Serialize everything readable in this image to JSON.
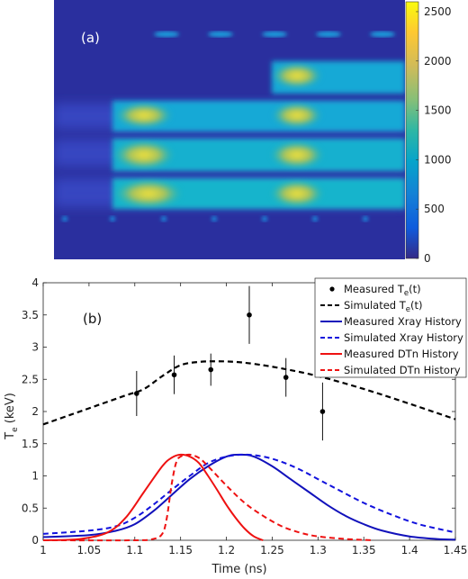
{
  "chart_data": [
    {
      "type": "heatmap",
      "panel_label": "(a)",
      "colorbar": {
        "range": [
          0,
          2600
        ],
        "ticks": [
          0,
          500,
          1000,
          1500,
          2000,
          2500
        ],
        "colormap": "parula",
        "colors": [
          "#352a87",
          "#0f5cdd",
          "#1481d6",
          "#06a4ca",
          "#2eb7a4",
          "#87bf77",
          "#d1bb59",
          "#fec832",
          "#f9fb0e"
        ]
      },
      "features": [
        {
          "name": "fiducial dots top",
          "row": 0.08,
          "x_start": 0.3,
          "x_end": 0.95,
          "count": 5,
          "value": 1400
        },
        {
          "name": "streak band 1",
          "row": 0.22,
          "x_start": 0.62,
          "x_end": 1.0,
          "value": 2000
        },
        {
          "name": "streak band 2",
          "row": 0.42,
          "x_start": 0.18,
          "x_end": 1.0,
          "value": 1700
        },
        {
          "name": "streak band 3",
          "row": 0.58,
          "x_start": 0.18,
          "x_end": 1.0,
          "value": 1900
        },
        {
          "name": "streak band 4",
          "row": 0.74,
          "x_start": 0.18,
          "x_end": 1.0,
          "value": 2100
        },
        {
          "name": "fiducial dots bottom",
          "row": 0.9,
          "x_start": 0.0,
          "x_end": 1.0,
          "count": 9,
          "value": 900
        }
      ]
    },
    {
      "type": "line",
      "panel_label": "(b)",
      "xlabel": "Time (ns)",
      "ylabel": "Te (keV)",
      "ylabel_main": "T",
      "ylabel_sub": "e",
      "ylabel_rest": " (keV)",
      "xlim": [
        1,
        1.45
      ],
      "ylim": [
        0,
        4
      ],
      "xticks": [
        1,
        1.05,
        1.1,
        1.15,
        1.2,
        1.25,
        1.3,
        1.35,
        1.4,
        1.45
      ],
      "yticks": [
        0,
        0.5,
        1,
        1.5,
        2,
        2.5,
        3,
        3.5,
        4
      ],
      "grid": false,
      "legend_position": "top-right",
      "measured_te": {
        "name": "Measured Te(t)",
        "x": [
          1.102,
          1.143,
          1.183,
          1.225,
          1.265,
          1.305
        ],
        "y": [
          2.28,
          2.57,
          2.65,
          3.5,
          2.53,
          2.0
        ],
        "err": [
          0.35,
          0.3,
          0.25,
          0.45,
          0.3,
          0.45
        ],
        "color": "#000000"
      },
      "simulated_te": {
        "name": "Simulated Te(t)",
        "x": [
          1.0,
          1.03,
          1.06,
          1.09,
          1.11,
          1.13,
          1.15,
          1.17,
          1.19,
          1.21,
          1.23,
          1.26,
          1.3,
          1.35,
          1.4,
          1.45
        ],
        "y": [
          1.8,
          1.95,
          2.1,
          2.25,
          2.35,
          2.55,
          2.72,
          2.77,
          2.78,
          2.77,
          2.74,
          2.67,
          2.55,
          2.35,
          2.12,
          1.88
        ],
        "color": "#000000"
      },
      "series": [
        {
          "name": "Measured Xray History",
          "color": "#1111bb",
          "dash": "solid",
          "x": [
            1.0,
            1.05,
            1.08,
            1.1,
            1.12,
            1.14,
            1.16,
            1.18,
            1.2,
            1.215,
            1.23,
            1.25,
            1.27,
            1.29,
            1.31,
            1.33,
            1.35,
            1.37,
            1.4,
            1.43,
            1.45
          ],
          "y": [
            0.05,
            0.08,
            0.15,
            0.25,
            0.45,
            0.7,
            0.95,
            1.15,
            1.3,
            1.33,
            1.3,
            1.15,
            0.95,
            0.75,
            0.55,
            0.38,
            0.25,
            0.15,
            0.06,
            0.02,
            0.01
          ]
        },
        {
          "name": "Simulated Xray History",
          "color": "#1111dd",
          "dash": "dashed",
          "x": [
            1.0,
            1.05,
            1.08,
            1.1,
            1.12,
            1.14,
            1.16,
            1.18,
            1.2,
            1.22,
            1.24,
            1.26,
            1.28,
            1.3,
            1.32,
            1.35,
            1.38,
            1.41,
            1.45
          ],
          "y": [
            0.1,
            0.15,
            0.22,
            0.35,
            0.55,
            0.78,
            1.0,
            1.2,
            1.3,
            1.33,
            1.3,
            1.22,
            1.1,
            0.95,
            0.8,
            0.58,
            0.4,
            0.25,
            0.12
          ]
        },
        {
          "name": "Measured DTn History",
          "color": "#ee1111",
          "dash": "solid",
          "x": [
            1.0,
            1.04,
            1.07,
            1.09,
            1.11,
            1.13,
            1.14,
            1.15,
            1.16,
            1.17,
            1.18,
            1.19,
            1.2,
            1.21,
            1.22,
            1.23,
            1.24
          ],
          "y": [
            0.0,
            0.02,
            0.12,
            0.35,
            0.75,
            1.15,
            1.28,
            1.33,
            1.3,
            1.2,
            1.0,
            0.78,
            0.55,
            0.35,
            0.18,
            0.06,
            0.0
          ]
        },
        {
          "name": "Simulated DTn History",
          "color": "#ee1111",
          "dash": "dashed",
          "x": [
            1.0,
            1.1,
            1.12,
            1.13,
            1.135,
            1.14,
            1.145,
            1.15,
            1.16,
            1.17,
            1.18,
            1.2,
            1.22,
            1.24,
            1.26,
            1.28,
            1.3,
            1.33,
            1.36
          ],
          "y": [
            0.0,
            0.0,
            0.02,
            0.1,
            0.35,
            0.85,
            1.2,
            1.3,
            1.33,
            1.28,
            1.15,
            0.85,
            0.58,
            0.38,
            0.22,
            0.12,
            0.06,
            0.02,
            0.0
          ]
        }
      ],
      "legend": {
        "measured_te": {
          "main": "Measured T",
          "sub": "e",
          "rest": "(t)"
        },
        "simulated_te": {
          "main": "Simulated T",
          "sub": "e",
          "rest": "(t)"
        },
        "entries": [
          "Measured Xray History",
          "Simulated Xray History",
          "Measured DTn History",
          "Simulated DTn History"
        ]
      }
    }
  ]
}
